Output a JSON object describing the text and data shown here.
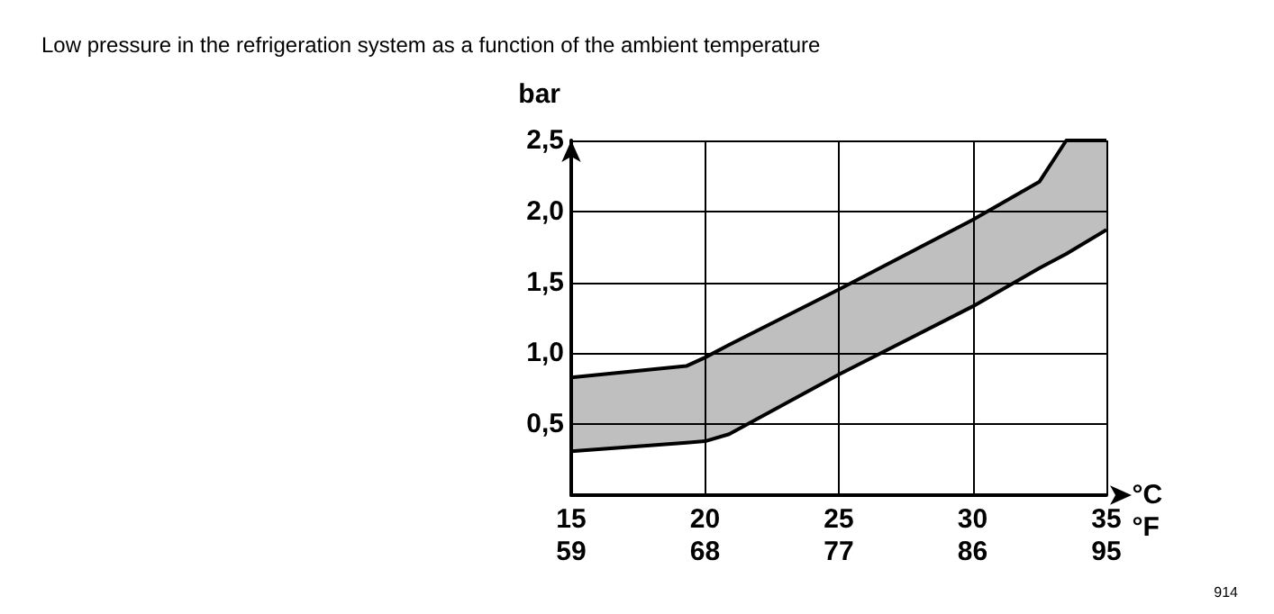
{
  "chart_data": {
    "type": "line",
    "title": "Low pressure in the refrigeration system as a function of the ambient temperature",
    "xlabel": "°C",
    "x2label": "°F",
    "ylabel": "bar",
    "annotations": [
      "914"
    ],
    "series": [
      {
        "x": [
          15,
          19.3,
          20,
          20.9,
          25,
          30,
          32.5,
          33.5,
          35
        ],
        "values": [
          0.83,
          0.91,
          0.97,
          1.06,
          1.45,
          1.94,
          2.21,
          2.5,
          2.5
        ],
        "lower": [
          0.31,
          0.37,
          0.38,
          0.43,
          0.85,
          1.33,
          1.6,
          1.7,
          1.87
        ],
        "upper": [
          0.83,
          0.91,
          0.97,
          1.06,
          1.45,
          1.94,
          2.21,
          2.5,
          2.5
        ],
        "color": "#000000"
      },
      {
        "x": [
          15,
          19.3,
          20,
          20.9,
          25,
          30,
          32.5,
          33.5,
          35
        ],
        "values": [
          0.31,
          0.37,
          0.38,
          0.43,
          0.85,
          1.33,
          1.6,
          1.7,
          1.87
        ],
        "color": "#000000"
      }
    ],
    "xlim": [
      15,
      35
    ],
    "xticks": [
      15,
      20,
      25,
      30,
      35
    ],
    "x2lim": [
      59,
      95
    ],
    "x2ticks": [
      59,
      68,
      77,
      86,
      95
    ],
    "ylim": [
      0,
      2.5
    ],
    "yticks": [
      {
        "value": 0.5,
        "label": "0,5"
      },
      {
        "value": 1,
        "label": "1,0"
      },
      {
        "value": 1.5,
        "label": "1,5"
      },
      {
        "value": 2,
        "label": "2,0"
      },
      {
        "value": 2.5,
        "label": "2,5"
      }
    ],
    "grid": true,
    "marker": "none",
    "line_style": "solid"
  }
}
